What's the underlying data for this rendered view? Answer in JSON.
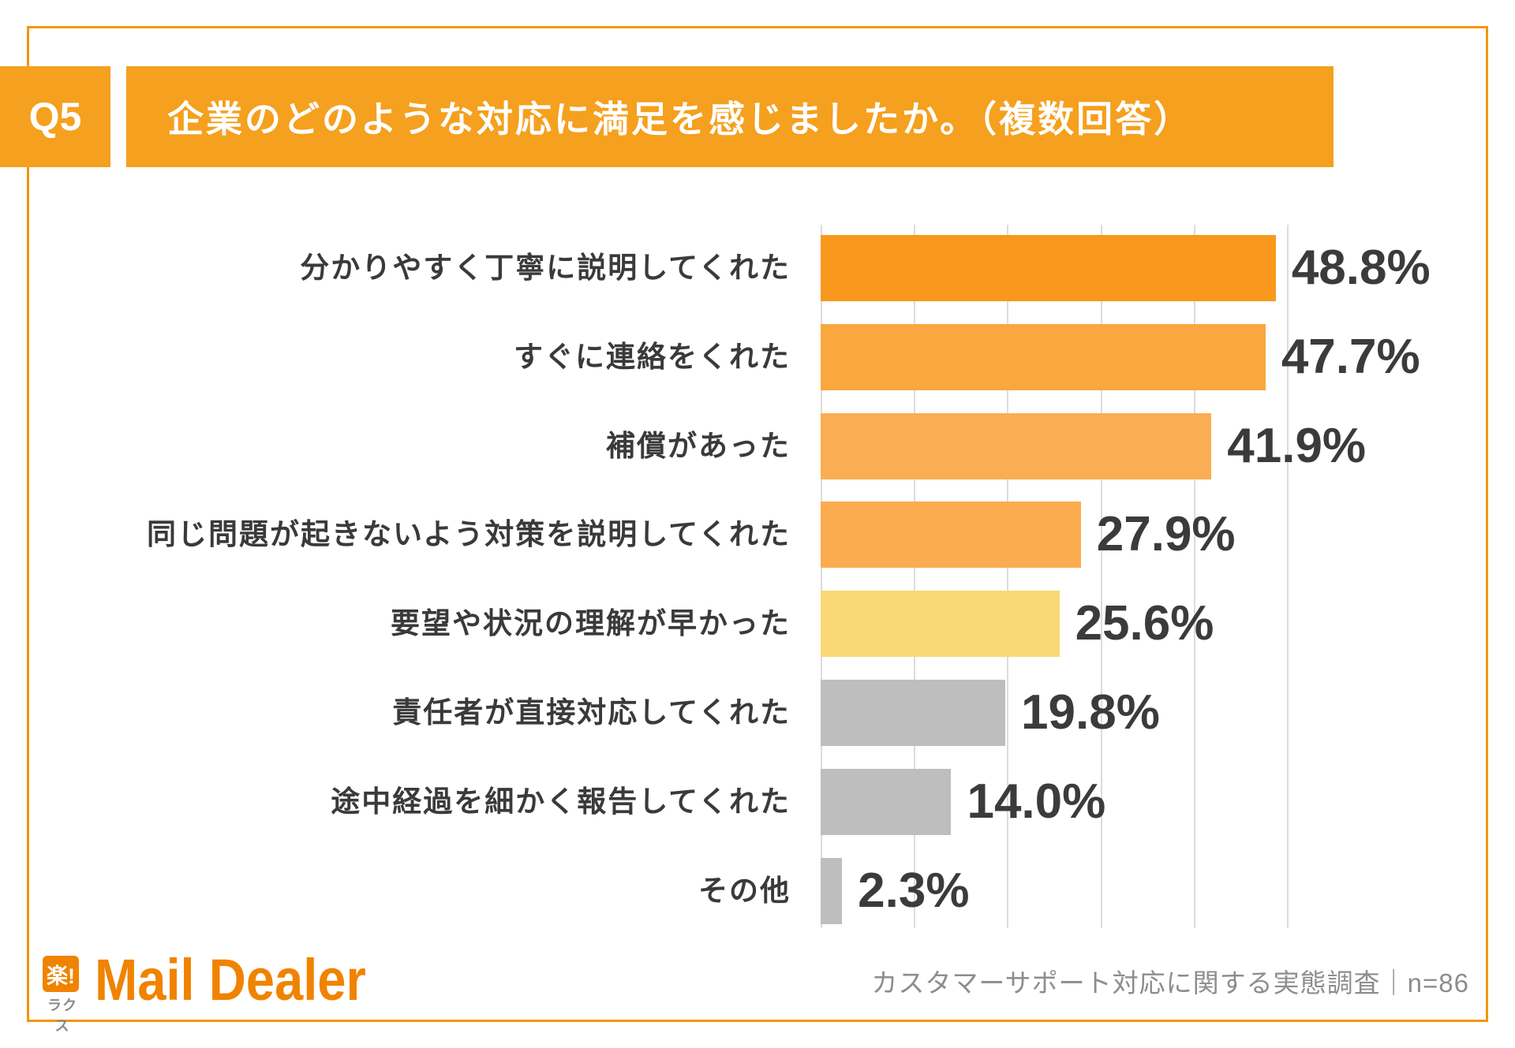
{
  "header": {
    "q_label": "Q5",
    "title": "企業のどのような対応に満足を感じましたか。（複数回答）",
    "bg_color": "#F5A01E",
    "text_color": "#FFFFFF"
  },
  "chart_data": {
    "type": "bar",
    "orientation": "horizontal",
    "title": "企業のどのような対応に満足を感じましたか。（複数回答）",
    "categories": [
      "分かりやすく丁寧に説明してくれた",
      "すぐに連絡をくれた",
      "補償があった",
      "同じ問題が起きないよう対策を説明してくれた",
      "要望や状況の理解が早かった",
      "責任者が直接対応してくれた",
      "途中経過を細かく報告してくれた",
      "その他"
    ],
    "values": [
      48.8,
      47.7,
      41.9,
      27.9,
      25.6,
      19.8,
      14.0,
      2.3
    ],
    "value_labels": [
      "48.8%",
      "47.7%",
      "41.9%",
      "27.9%",
      "25.6%",
      "19.8%",
      "14.0%",
      "2.3%"
    ],
    "bar_colors": [
      "#F8991D",
      "#F9A73E",
      "#FAAE53",
      "#FAAC4E",
      "#FBD876",
      "#BEBEBE",
      "#BEBEBE",
      "#BEBEBE"
    ],
    "xlabel": "",
    "ylabel": "",
    "xlim": [
      0,
      50
    ],
    "gridline_interval": 10,
    "grid": "on",
    "gridline_color": "#DCDCDC",
    "category_label_color": "#3A3A3A",
    "value_label_color": "#3B3B3B",
    "legend": "none"
  },
  "footer": {
    "logo_mark": "楽!",
    "logo_sub": "ラクス",
    "logo_name": "Mail Dealer",
    "logo_color": "#F08300",
    "source": "カスタマーサポート対応に関する実態調査｜n=86"
  }
}
